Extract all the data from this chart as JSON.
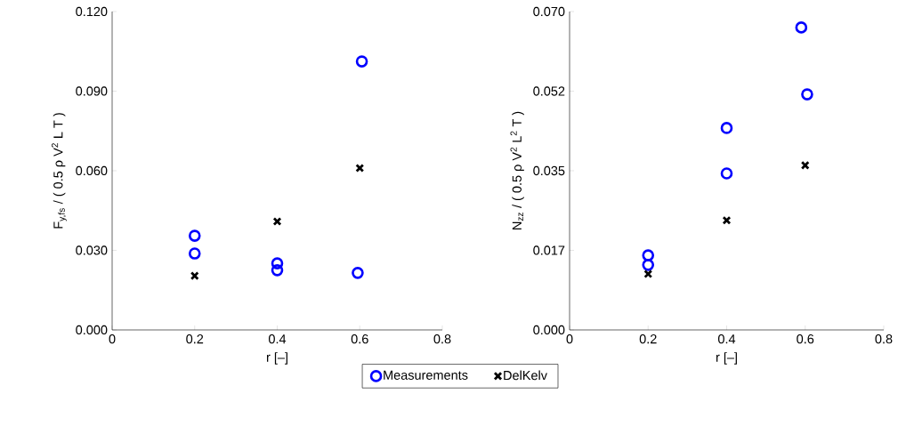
{
  "chart_data": [
    {
      "type": "scatter",
      "xlabel": "r [–]",
      "ylabel": "F$_{y,fs}$ / ( 0.5 ρ V$^{2}$ L T )",
      "xlim": [
        0,
        0.8
      ],
      "xticks": [
        0,
        0.2,
        0.4,
        0.6,
        0.8
      ],
      "ylim": [
        0,
        0.12
      ],
      "yticks": [
        {
          "value": 0,
          "label": "0.000"
        },
        {
          "value": 0.03,
          "label": "0.030"
        },
        {
          "value": 0.06,
          "label": "0.060"
        },
        {
          "value": 0.09,
          "label": "0.090"
        },
        {
          "value": 0.12,
          "label": "0.120"
        }
      ],
      "legend": "bottom",
      "grid": false,
      "series": [
        {
          "name": "Measurements",
          "color": "#0000ff",
          "marker": "circle",
          "x": [
            0.2,
            0.2,
            0.4,
            0.4,
            0.605,
            0.595
          ],
          "values": [
            0.0355,
            0.0288,
            0.0251,
            0.0225,
            0.1012,
            0.0215
          ]
        },
        {
          "name": "DelKelv",
          "color": "#000000",
          "marker": "cross",
          "x": [
            0.2,
            0.4,
            0.6
          ],
          "values": [
            0.0204,
            0.0409,
            0.061
          ]
        }
      ]
    },
    {
      "type": "scatter",
      "xlabel": "r [–]",
      "ylabel": "N$_{zz}$ / ( 0.5 ρ V$^{2}$ L$^{2}$ T )",
      "xlim": [
        0,
        0.8
      ],
      "xticks": [
        0,
        0.2,
        0.4,
        0.6,
        0.8
      ],
      "ylim": [
        0,
        0.07
      ],
      "yticks": [
        {
          "value": 0,
          "label": "0.000"
        },
        {
          "value": 0.0175,
          "label": "0.017"
        },
        {
          "value": 0.035,
          "label": "0.035"
        },
        {
          "value": 0.0525,
          "label": "0.052"
        },
        {
          "value": 0.07,
          "label": "0.070"
        }
      ],
      "grid": false,
      "series": [
        {
          "color": "#0000ff",
          "marker": "circle",
          "x": [
            0.2,
            0.2,
            0.4,
            0.4,
            0.59,
            0.605
          ],
          "values": [
            0.0164,
            0.0143,
            0.0444,
            0.0344,
            0.0665,
            0.0518
          ]
        },
        {
          "color": "#000000",
          "marker": "cross",
          "x": [
            0.2,
            0.4,
            0.6
          ],
          "values": [
            0.0123,
            0.0241,
            0.0362
          ]
        }
      ]
    }
  ]
}
